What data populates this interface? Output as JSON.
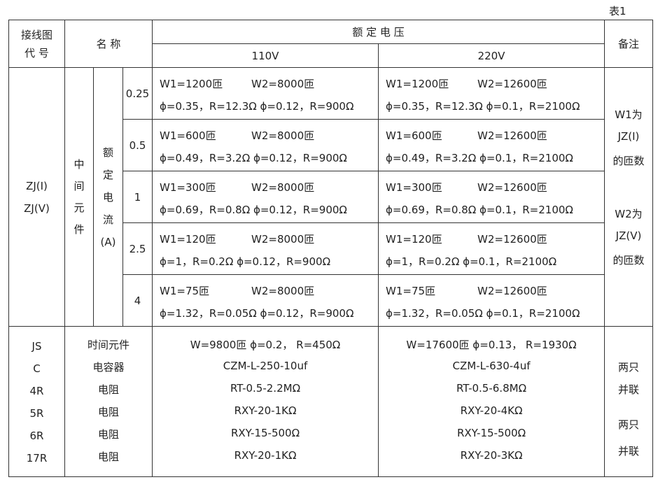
{
  "caption": "表1",
  "header": {
    "code_l1": "接线图",
    "code_l2": "代 号",
    "name": "名 称",
    "rated_voltage": "额 定 电 压",
    "v110": "110V",
    "v220": "220V",
    "remark": "备注"
  },
  "zj": {
    "codes": [
      "ZJ(I)",
      "ZJ(V)"
    ],
    "element": [
      "中",
      "间",
      "元",
      "件"
    ],
    "current": [
      "额",
      "定",
      "电",
      "流",
      "(A)"
    ],
    "remarks": [
      "W1为",
      "JZ(I)",
      "的匝数",
      "W2为",
      "JZ(V)",
      "的匝数"
    ]
  },
  "rows": [
    {
      "current": "0.25",
      "v110": {
        "w1": "W1=1200匝",
        "w2": "W2=8000匝",
        "l2": "ϕ=0.35，R=12.3Ω ϕ=0.12，R=900Ω"
      },
      "v220": {
        "w1": "W1=1200匝",
        "w2": "W2=12600匝",
        "l2": "ϕ=0.35，R=12.3Ω ϕ=0.1，R=2100Ω"
      }
    },
    {
      "current": "0.5",
      "v110": {
        "w1": "W1=600匝",
        "w2": "W2=8000匝",
        "l2": "ϕ=0.49，R=3.2Ω ϕ=0.12，R=900Ω"
      },
      "v220": {
        "w1": "W1=600匝",
        "w2": "W2=12600匝",
        "l2": "ϕ=0.49，R=3.2Ω ϕ=0.1，R=2100Ω"
      }
    },
    {
      "current": "1",
      "v110": {
        "w1": "W1=300匝",
        "w2": "W2=8000匝",
        "l2": "ϕ=0.69，R=0.8Ω ϕ=0.12，R=900Ω"
      },
      "v220": {
        "w1": "W1=300匝",
        "w2": "W2=12600匝",
        "l2": "ϕ=0.69，R=0.8Ω ϕ=0.1，R=2100Ω"
      }
    },
    {
      "current": "2.5",
      "v110": {
        "w1": "W1=120匝",
        "w2": "W2=8000匝",
        "l2": "ϕ=1，R=0.2Ω    ϕ=0.12，R=900Ω"
      },
      "v220": {
        "w1": "W1=120匝",
        "w2": "W2=12600匝",
        "l2": "ϕ=1，R=0.2Ω    ϕ=0.1，R=2100Ω"
      }
    },
    {
      "current": "4",
      "v110": {
        "w1": "W1=75匝",
        "w2": "W2=8000匝",
        "l2": "ϕ=1.32，R=0.05Ω ϕ=0.12，R=900Ω"
      },
      "v220": {
        "w1": "W1=75匝",
        "w2": "W2=12600匝",
        "l2": "ϕ=1.32，R=0.05Ω ϕ=0.1，R=2100Ω"
      }
    }
  ],
  "bottom": {
    "codes": [
      "JS",
      "C",
      "4R",
      "5R",
      "6R",
      "17R"
    ],
    "names": [
      "时间元件",
      "电容器",
      "电阻",
      "电阻",
      "电阻",
      "电阻"
    ],
    "v110": [
      "W=9800匝  ϕ=0.2， R=450Ω",
      "CZM-L-250-10uf",
      "RT-0.5-2.2MΩ",
      "RXY-20-1KΩ",
      "RXY-15-500Ω",
      "RXY-20-1KΩ"
    ],
    "v220": [
      "W=17600匝  ϕ=0.13， R=1930Ω",
      "CZM-L-630-4uf",
      "RT-0.5-6.8MΩ",
      "RXY-20-4KΩ",
      "RXY-15-500Ω",
      "RXY-20-3KΩ"
    ],
    "remarks": [
      "两只",
      "并联",
      "两只",
      "并联"
    ]
  }
}
